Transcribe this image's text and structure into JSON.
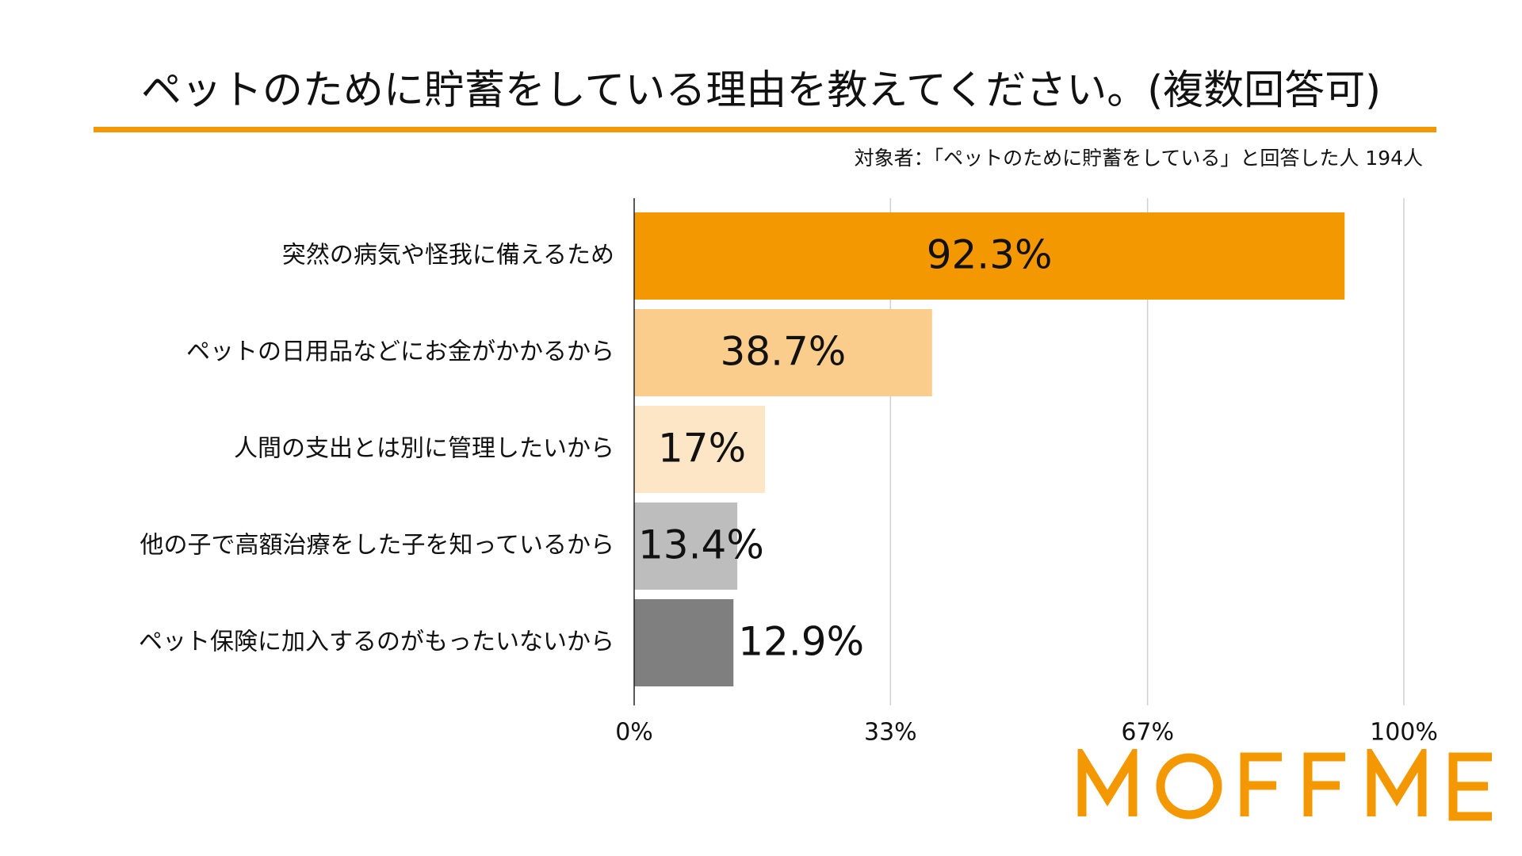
{
  "title": "ペットのために貯蓄をしている理由を教えてください。(複数回答可)",
  "subtitle": "対象者：「ペットのために貯蓄をしている」と回答した人 194人",
  "brand": "MOFFME",
  "colors": {
    "accent": "#f39800",
    "text": "#111111",
    "grid": "#d0d0d0",
    "axis": "#222222"
  },
  "chart_data": {
    "type": "bar",
    "orientation": "horizontal",
    "categories": [
      "突然の病気や怪我に備えるため",
      "ペットの日用品などにお金がかかるから",
      "人間の支出とは別に管理したいから",
      "他の子で高額治療をした子を知っているから",
      "ペット保険に加入するのがもったいないから"
    ],
    "values": [
      92.3,
      38.7,
      17,
      13.4,
      12.9
    ],
    "data_labels": [
      "92.3%",
      "38.7%",
      "17%",
      "13.4%",
      "12.9%"
    ],
    "bar_colors": [
      "#f39800",
      "#fbcd8c",
      "#fde6c6",
      "#bdbdbd",
      "#7f7f7f"
    ],
    "xlim": [
      0,
      100
    ],
    "x_ticks": [
      0,
      33.3,
      66.7,
      100
    ],
    "x_tick_labels": [
      "0%",
      "33%",
      "67%",
      "100%"
    ],
    "grid": true,
    "legend": "none",
    "title": "ペットのために貯蓄をしている理由を教えてください。(複数回答可)",
    "subtitle": "対象者：「ペットのために貯蓄をしている」と回答した人 194人"
  }
}
